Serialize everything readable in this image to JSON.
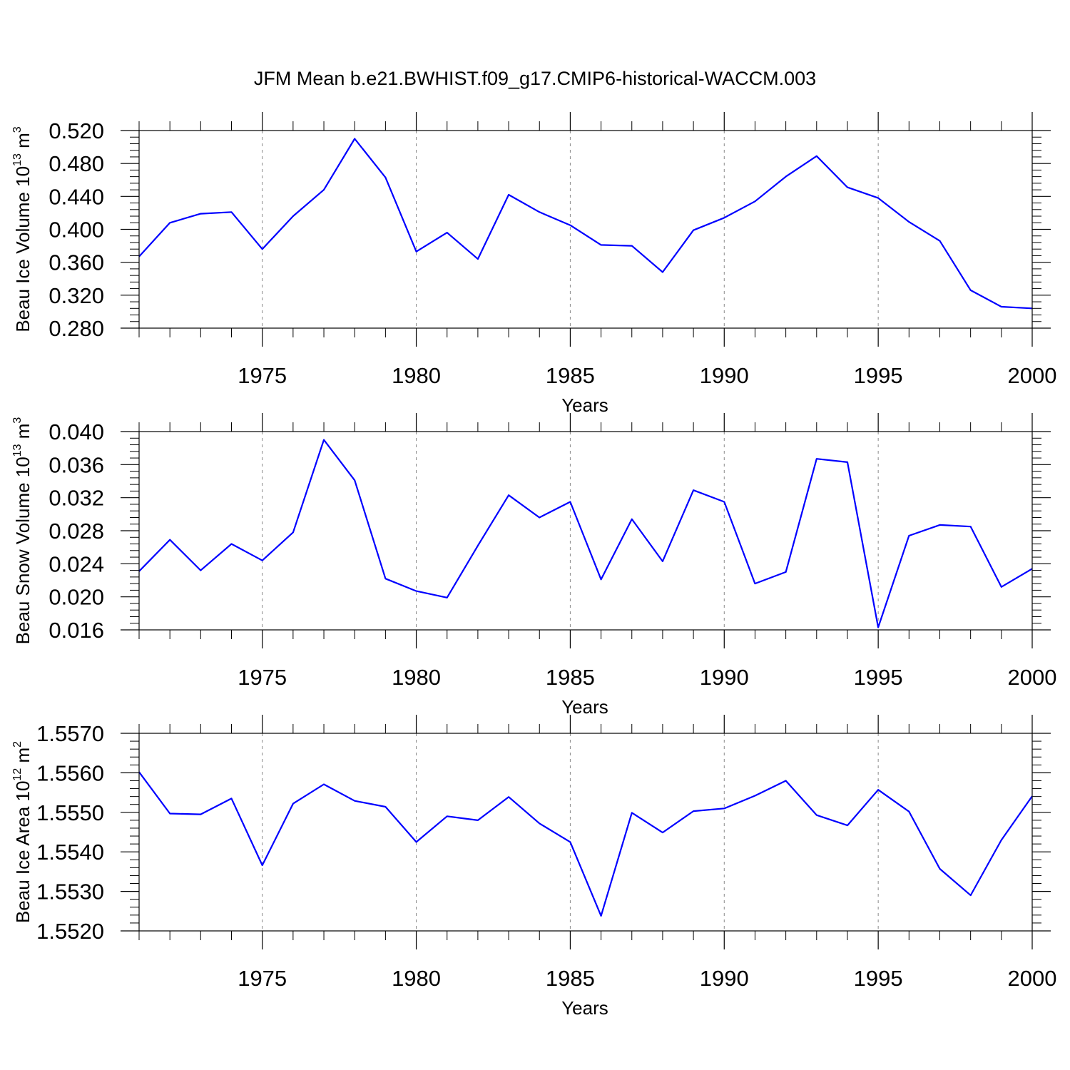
{
  "figure": {
    "title": "JFM Mean b.e21.BWHIST.f09_g17.CMIP6-historical-WACCM.003"
  },
  "chart_data": [
    {
      "type": "line",
      "xlabel": "Years",
      "ylabel": {
        "text": "Beau Ice Volume 10",
        "exponent": "13",
        "unit": "m",
        "unit_exponent": "3"
      },
      "xlim": [
        1971,
        2000
      ],
      "ylim": [
        0.28,
        0.52
      ],
      "yticks": [
        "0.280",
        "0.320",
        "0.360",
        "0.400",
        "0.440",
        "0.480",
        "0.520"
      ],
      "xticks": [
        "1975",
        "1980",
        "1985",
        "1990",
        "1995",
        "2000"
      ],
      "x": [
        1971,
        1972,
        1973,
        1974,
        1975,
        1976,
        1977,
        1978,
        1979,
        1980,
        1981,
        1982,
        1983,
        1984,
        1985,
        1986,
        1987,
        1988,
        1989,
        1990,
        1991,
        1992,
        1993,
        1994,
        1995,
        1996,
        1997,
        1998,
        1999,
        2000
      ],
      "series": [
        {
          "color": "#0000ff",
          "values": [
            0.367,
            0.408,
            0.419,
            0.421,
            0.376,
            0.416,
            0.448,
            0.51,
            0.463,
            0.373,
            0.396,
            0.364,
            0.442,
            0.421,
            0.405,
            0.381,
            0.38,
            0.348,
            0.399,
            0.414,
            0.434,
            0.464,
            0.489,
            0.451,
            0.438,
            0.409,
            0.386,
            0.326,
            0.306,
            0.304
          ]
        }
      ],
      "grid": "vertical dashed at major x ticks"
    },
    {
      "type": "line",
      "xlabel": "Years",
      "ylabel": {
        "text": "Beau Snow Volume 10",
        "exponent": "13",
        "unit": "m",
        "unit_exponent": "3"
      },
      "xlim": [
        1971,
        2000
      ],
      "ylim": [
        0.016,
        0.04
      ],
      "yticks": [
        "0.016",
        "0.020",
        "0.024",
        "0.028",
        "0.032",
        "0.036",
        "0.040"
      ],
      "xticks": [
        "1975",
        "1980",
        "1985",
        "1990",
        "1995",
        "2000"
      ],
      "x": [
        1971,
        1972,
        1973,
        1974,
        1975,
        1976,
        1977,
        1978,
        1979,
        1980,
        1981,
        1982,
        1983,
        1984,
        1985,
        1986,
        1987,
        1988,
        1989,
        1990,
        1991,
        1992,
        1993,
        1994,
        1995,
        1996,
        1997,
        1998,
        1999,
        2000
      ],
      "series": [
        {
          "color": "#0000ff",
          "values": [
            0.0231,
            0.0269,
            0.0232,
            0.0264,
            0.0244,
            0.0278,
            0.039,
            0.0341,
            0.0222,
            0.0207,
            0.0199,
            0.0262,
            0.0323,
            0.0296,
            0.0315,
            0.0221,
            0.0294,
            0.0243,
            0.0329,
            0.0315,
            0.0216,
            0.023,
            0.0367,
            0.0363,
            0.0163,
            0.0274,
            0.0287,
            0.0285,
            0.0212,
            0.0234
          ]
        }
      ],
      "grid": "vertical dashed at major x ticks"
    },
    {
      "type": "line",
      "xlabel": "Years",
      "ylabel": {
        "text": "Beau Ice Area 10",
        "exponent": "12",
        "unit": "m",
        "unit_exponent": "2"
      },
      "xlim": [
        1971,
        2000
      ],
      "ylim": [
        1.552,
        1.557
      ],
      "yticks": [
        "1.5520",
        "1.5530",
        "1.5540",
        "1.5550",
        "1.5560",
        "1.5570"
      ],
      "xticks": [
        "1975",
        "1980",
        "1985",
        "1990",
        "1995",
        "2000"
      ],
      "x": [
        1971,
        1972,
        1973,
        1974,
        1975,
        1976,
        1977,
        1978,
        1979,
        1980,
        1981,
        1982,
        1983,
        1984,
        1985,
        1986,
        1987,
        1988,
        1989,
        1990,
        1991,
        1992,
        1993,
        1994,
        1995,
        1996,
        1997,
        1998,
        1999,
        2000
      ],
      "series": [
        {
          "color": "#0000ff",
          "values": [
            1.55602,
            1.55497,
            1.55495,
            1.55535,
            1.55366,
            1.55522,
            1.55571,
            1.55529,
            1.55514,
            1.55425,
            1.5549,
            1.5548,
            1.55539,
            1.55472,
            1.55425,
            1.55238,
            1.55499,
            1.55449,
            1.55503,
            1.5551,
            1.55542,
            1.5558,
            1.55493,
            1.55467,
            1.55557,
            1.55502,
            1.55357,
            1.5529,
            1.5543,
            1.55541
          ]
        }
      ],
      "grid": "vertical dashed at major x ticks"
    }
  ]
}
